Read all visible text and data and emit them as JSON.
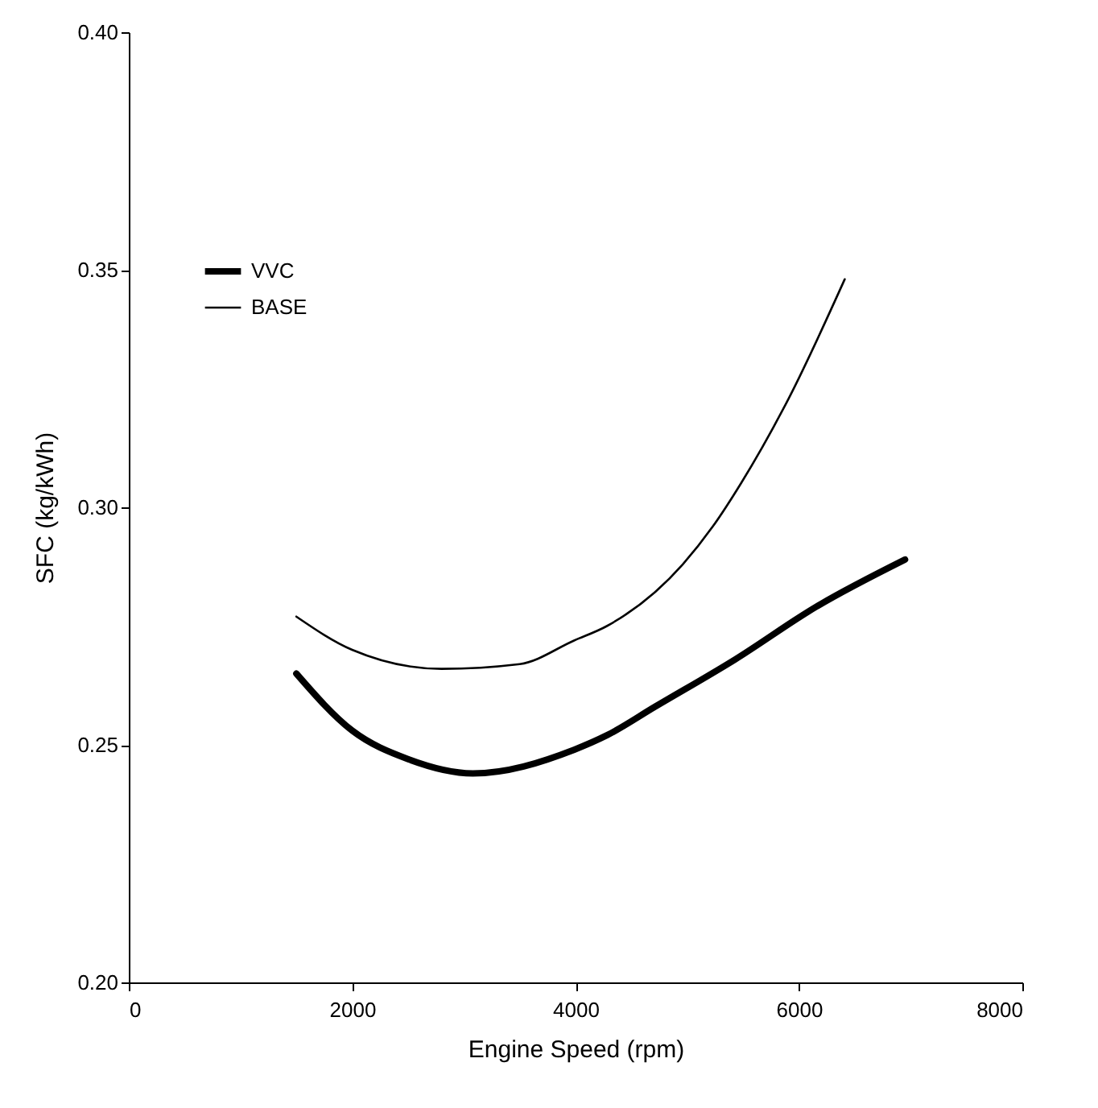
{
  "chart_data": {
    "type": "line",
    "xlabel": "Engine Speed (rpm)",
    "ylabel": "SFC (kg/kWh)",
    "xlim": [
      0,
      8000
    ],
    "xticks": [
      0,
      2000,
      4000,
      6000,
      8000
    ],
    "ylim": [
      0.2,
      0.4
    ],
    "yticks": [
      {
        "value": 0.2,
        "label": "0.20"
      },
      {
        "value": 0.25,
        "label": "0.25"
      },
      {
        "value": 0.3,
        "label": "0.30"
      },
      {
        "value": 0.35,
        "label": "0.35"
      },
      {
        "value": 0.4,
        "label": "0.40"
      }
    ],
    "grid": false,
    "legend": "top left",
    "marker": "none",
    "line_style": "solid",
    "series": [
      {
        "name": "VVC",
        "color": "#000000",
        "x": [
          1500,
          2000,
          2500,
          3080,
          3990,
          4280,
          4710,
          5430,
          6150,
          6950
        ],
        "values": [
          0.265,
          0.253,
          0.247,
          0.244,
          0.249,
          0.252,
          0.258,
          0.268,
          0.279,
          0.289
        ]
      },
      {
        "name": "BASE",
        "color": "#000000",
        "x": [
          1500,
          2000,
          2800,
          3500,
          3990,
          4280,
          4960,
          5230,
          5480,
          5910,
          6410
        ],
        "values": [
          0.277,
          0.27,
          0.266,
          0.267,
          0.272,
          0.275,
          0.288,
          0.296,
          0.305,
          0.323,
          0.348
        ]
      }
    ]
  }
}
